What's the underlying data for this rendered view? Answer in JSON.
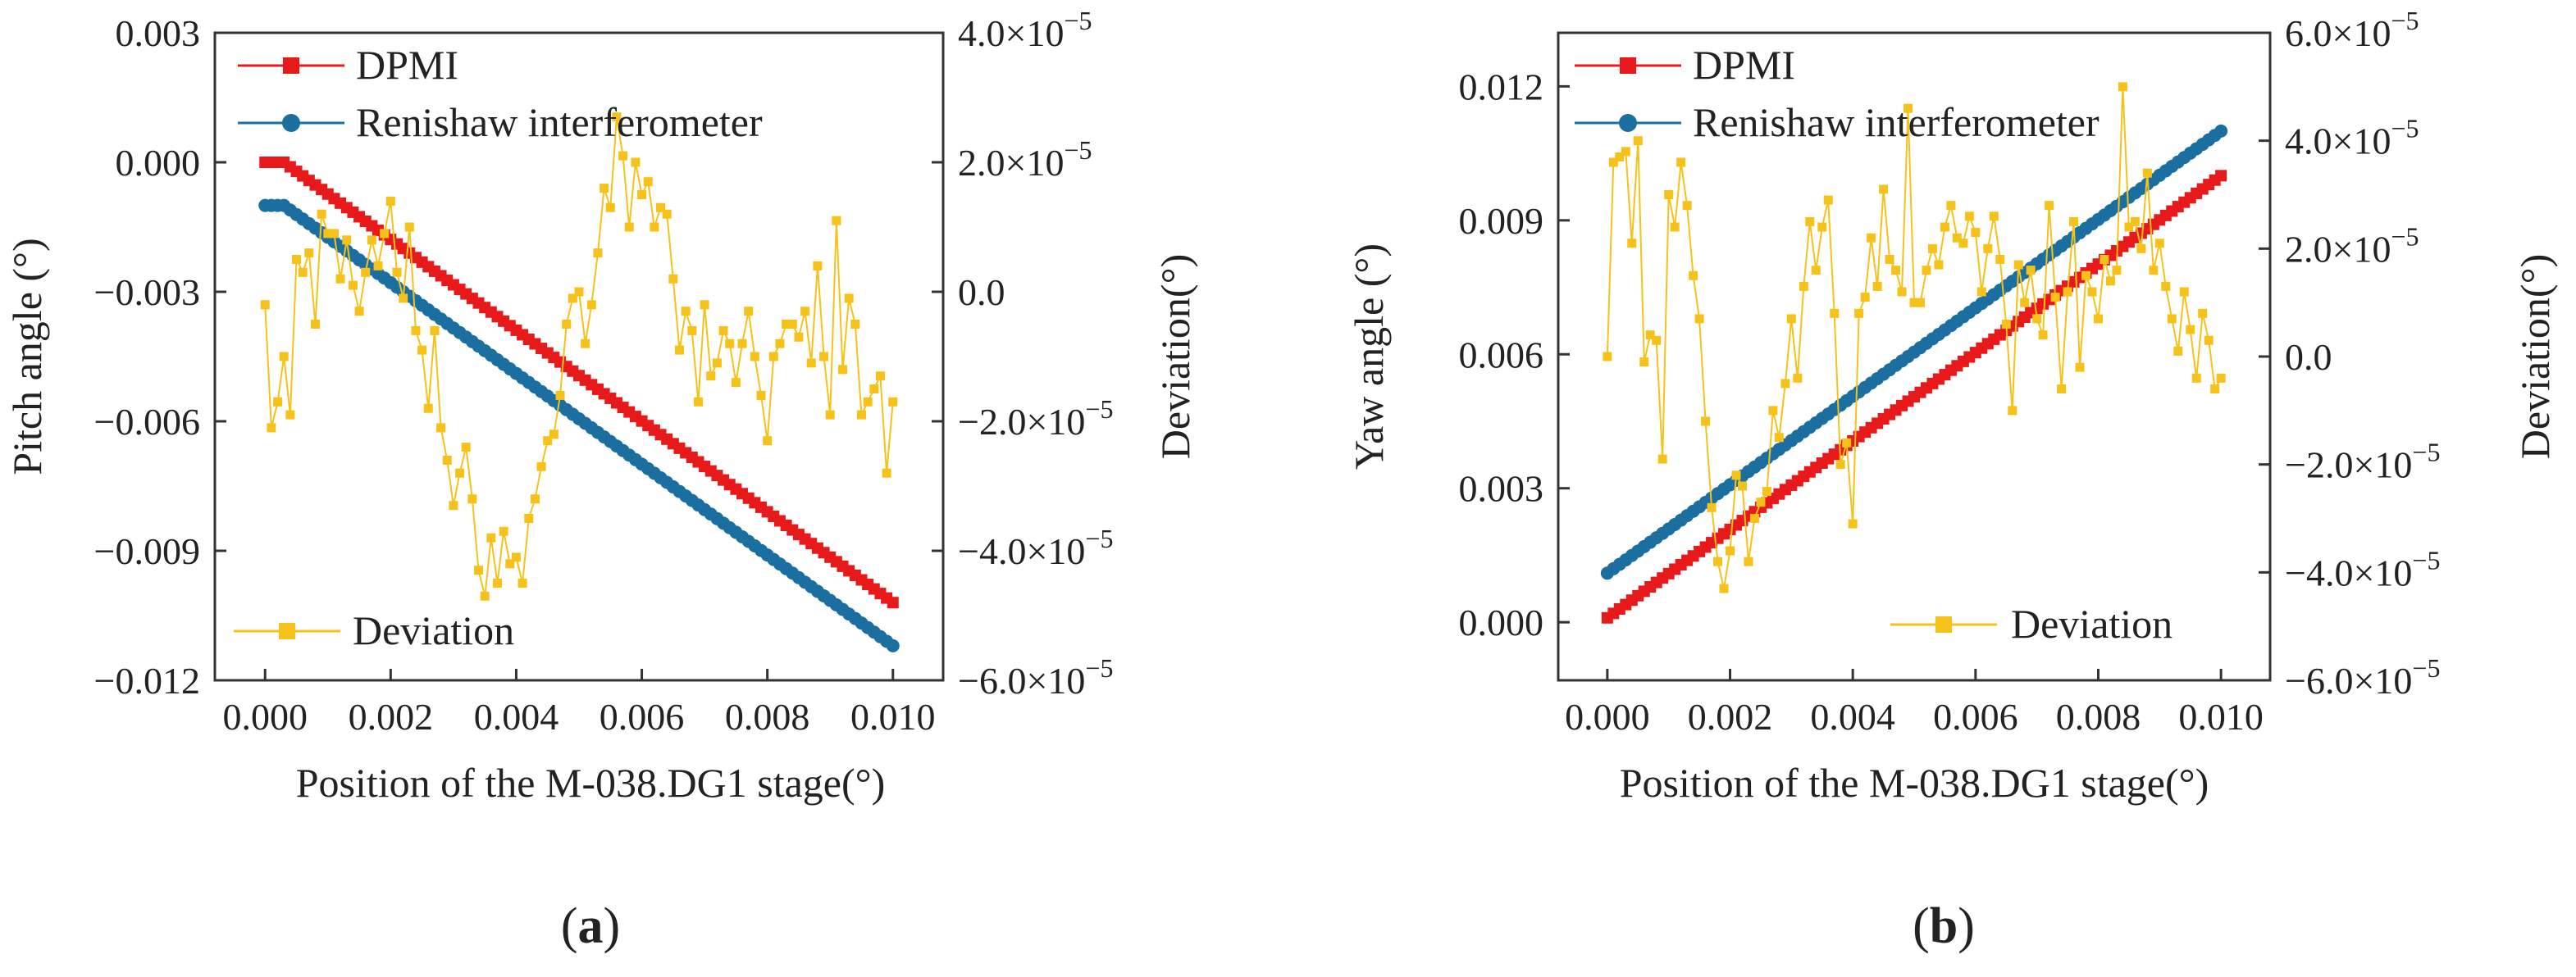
{
  "chart_data": [
    {
      "type": "line",
      "panel_label": "(a)",
      "panel_letter": "a",
      "xlabel": "Position of the M-038.DG1 stage(°)",
      "ylabel_left": "Pitch angle (°)",
      "ylabel_right": "Deviation(°)",
      "xlim": [
        -0.0008,
        0.0108
      ],
      "x_ticks": [
        0.0,
        0.002,
        0.004,
        0.006,
        0.008,
        0.01
      ],
      "x_tick_labels": [
        "0.000",
        "0.002",
        "0.004",
        "0.006",
        "0.008",
        "0.010"
      ],
      "ylim_left": [
        -0.012,
        0.003
      ],
      "y_ticks_left": [
        0.003,
        0.0,
        -0.003,
        -0.006,
        -0.009,
        -0.012
      ],
      "y_tick_labels_left": [
        "0.003",
        "0.000",
        "−0.003",
        "−0.006",
        "−0.009",
        "−0.012"
      ],
      "ylim_right": [
        -6e-05,
        4e-05
      ],
      "y_ticks_right": [
        4e-05,
        2e-05,
        0.0,
        -2e-05,
        -4e-05,
        -6e-05
      ],
      "y_tick_labels_right": [
        {
          "mantissa": "4.0×10",
          "exp": "−5"
        },
        {
          "mantissa": "2.0×10",
          "exp": "−5"
        },
        {
          "mantissa": "0.0",
          "exp": ""
        },
        {
          "mantissa": "−2.0×10",
          "exp": "−5"
        },
        {
          "mantissa": "−4.0×10",
          "exp": "−5"
        },
        {
          "mantissa": "−6.0×10",
          "exp": "−5"
        }
      ],
      "series": [
        {
          "name": "DPMI",
          "axis": "left",
          "color": "#e8191b",
          "marker": "square",
          "x_start": 0.0,
          "x_end": 0.01,
          "n_points": 101,
          "start_value": 0.0,
          "end_value": -0.0102,
          "flat_start_points": 4
        },
        {
          "name": "Renishaw interferometer",
          "axis": "left",
          "color": "#1b6fa0",
          "marker": "circle",
          "x_start": 0.0,
          "x_end": 0.01,
          "n_points": 101,
          "start_value": -0.001,
          "end_value": -0.0112,
          "flat_start_points": 4
        },
        {
          "name": "Deviation",
          "axis": "right",
          "color": "#f6c21a",
          "marker": "square",
          "x_start": 0.0,
          "x_end": 0.01,
          "values": [
            -0.2,
            -2.1,
            -1.7,
            -1.0,
            -1.9,
            0.5,
            0.3,
            0.6,
            -0.5,
            1.2,
            0.9,
            0.9,
            0.2,
            0.8,
            0.1,
            -0.3,
            0.3,
            0.8,
            0.4,
            0.9,
            1.4,
            0.3,
            -0.1,
            1.0,
            -0.6,
            -0.9,
            -1.8,
            -0.6,
            -2.1,
            -2.6,
            -3.3,
            -2.8,
            -2.4,
            -3.2,
            -4.3,
            -4.7,
            -3.8,
            -4.5,
            -3.7,
            -4.2,
            -4.1,
            -4.5,
            -3.5,
            -3.2,
            -2.7,
            -2.3,
            -2.2,
            -1.6,
            -0.5,
            -0.1,
            0.0,
            -0.8,
            -0.2,
            0.6,
            1.6,
            1.3,
            2.7,
            2.1,
            1.0,
            2.0,
            1.5,
            1.7,
            1.0,
            1.3,
            1.2,
            0.2,
            -0.9,
            -0.3,
            -0.6,
            -1.7,
            -0.2,
            -1.3,
            -1.1,
            -0.6,
            -0.8,
            -1.4,
            -0.8,
            -0.3,
            -1.0,
            -1.6,
            -2.3,
            -1.0,
            -0.8,
            -0.5,
            -0.5,
            -0.7,
            -0.3,
            -1.1,
            0.4,
            -1.0,
            -1.9,
            1.1,
            -1.2,
            -0.1,
            -0.5,
            -1.9,
            -1.7,
            -1.5,
            -1.3,
            -2.8,
            -1.7
          ]
        }
      ],
      "legend": [
        {
          "label": "DPMI",
          "series": "DPMI",
          "placement": "top-left"
        },
        {
          "label": "Renishaw interferometer",
          "series": "Renishaw interferometer",
          "placement": "top-left"
        },
        {
          "label": "Deviation",
          "series": "Deviation",
          "placement": "bottom-left"
        }
      ]
    },
    {
      "type": "line",
      "panel_label": "(b)",
      "panel_letter": "b",
      "xlabel": "Position of the M-038.DG1 stage(°)",
      "ylabel_left": "Yaw angle (°)",
      "ylabel_right": "Deviation(°)",
      "xlim": [
        -0.0008,
        0.0108
      ],
      "x_ticks": [
        0.0,
        0.002,
        0.004,
        0.006,
        0.008,
        0.01
      ],
      "x_tick_labels": [
        "0.000",
        "0.002",
        "0.004",
        "0.006",
        "0.008",
        "0.010"
      ],
      "ylim_left": [
        -0.0013,
        0.0132
      ],
      "y_ticks_left": [
        0.012,
        0.009,
        0.006,
        0.003,
        0.0
      ],
      "y_tick_labels_left": [
        "0.012",
        "0.009",
        "0.006",
        "0.003",
        "0.000"
      ],
      "ylim_right": [
        -6e-05,
        6e-05
      ],
      "y_ticks_right": [
        6e-05,
        4e-05,
        2e-05,
        0.0,
        -2e-05,
        -4e-05,
        -6e-05
      ],
      "y_tick_labels_right": [
        {
          "mantissa": "6.0×10",
          "exp": "−5"
        },
        {
          "mantissa": "4.0×10",
          "exp": "−5"
        },
        {
          "mantissa": "2.0×10",
          "exp": "−5"
        },
        {
          "mantissa": "0.0",
          "exp": ""
        },
        {
          "mantissa": "−2.0×10",
          "exp": "−5"
        },
        {
          "mantissa": "−4.0×10",
          "exp": "−5"
        },
        {
          "mantissa": "−6.0×10",
          "exp": "−5"
        }
      ],
      "series": [
        {
          "name": "DPMI",
          "axis": "left",
          "color": "#e8191b",
          "marker": "square",
          "x_start": 0.0,
          "x_end": 0.01,
          "n_points": 101,
          "start_value": 0.0,
          "end_value": 0.01,
          "flat_start_points": 0
        },
        {
          "name": "Renishaw interferometer",
          "axis": "left",
          "color": "#1b6fa0",
          "marker": "circle",
          "x_start": 0.0,
          "x_end": 0.01,
          "n_points": 101,
          "start_value": 0.001,
          "end_value": 0.011,
          "flat_start_points": 0
        },
        {
          "name": "Deviation",
          "axis": "right",
          "color": "#f6c21a",
          "marker": "square",
          "x_start": 0.0,
          "x_end": 0.01,
          "values": [
            0.0,
            3.6,
            3.7,
            3.8,
            2.1,
            4.0,
            -0.1,
            0.4,
            0.3,
            -1.9,
            3.0,
            2.4,
            3.6,
            2.8,
            1.5,
            0.7,
            -1.2,
            -2.8,
            -3.8,
            -4.3,
            -3.6,
            -2.2,
            -2.4,
            -3.8,
            -3.0,
            -2.7,
            -2.5,
            -1.0,
            -1.5,
            -0.5,
            0.7,
            -0.4,
            1.3,
            2.5,
            1.6,
            2.4,
            2.9,
            0.8,
            -2.0,
            -1.6,
            -3.1,
            0.8,
            1.1,
            2.2,
            1.3,
            3.1,
            1.8,
            1.6,
            1.2,
            4.6,
            1.0,
            1.0,
            1.6,
            2.0,
            1.7,
            2.4,
            2.8,
            2.2,
            2.1,
            2.6,
            2.3,
            1.2,
            2.0,
            2.6,
            1.8,
            0.6,
            -1.0,
            1.7,
            1.0,
            1.6,
            0.7,
            0.4,
            2.8,
            1.1,
            -0.6,
            1.2,
            2.5,
            -0.2,
            1.5,
            1.2,
            0.7,
            1.8,
            1.4,
            1.6,
            5.0,
            2.4,
            2.5,
            2.0,
            3.4,
            1.6,
            2.1,
            1.3,
            0.7,
            0.1,
            1.2,
            0.5,
            -0.4,
            0.8,
            0.3,
            -0.6,
            -0.4
          ]
        }
      ],
      "legend": [
        {
          "label": "DPMI",
          "series": "DPMI",
          "placement": "top-left"
        },
        {
          "label": "Renishaw interferometer",
          "series": "Renishaw interferometer",
          "placement": "top-left"
        },
        {
          "label": "Deviation",
          "series": "Deviation",
          "placement": "bottom-right"
        }
      ]
    }
  ]
}
